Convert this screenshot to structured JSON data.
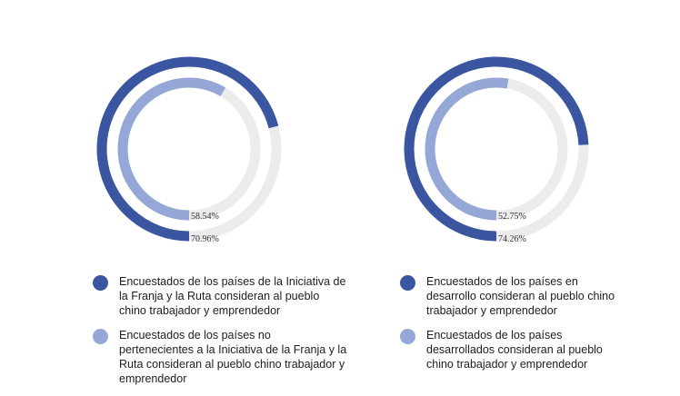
{
  "chart_data": [
    {
      "type": "radial-progress",
      "unit": "%",
      "max": 100,
      "series": [
        {
          "name": "Encuestados de los países de la Iniciativa de la Franja y la Ruta consideran al pueblo chino trabajador y emprendedor",
          "value": 70.96,
          "label": "70.96%",
          "color": "#3a56a0"
        },
        {
          "name": "Encuestados de los países no pertenecientes a la Iniciativa de la Franja y la Ruta consideran al pueblo chino trabajador y emprendedor",
          "value": 58.54,
          "label": "58.54%",
          "color": "#95a7d6"
        }
      ]
    },
    {
      "type": "radial-progress",
      "unit": "%",
      "max": 100,
      "series": [
        {
          "name": "Encuestados de los países en desarrollo consideran al pueblo chino trabajador y emprendedor",
          "value": 74.26,
          "label": "74.26%",
          "color": "#3a56a0"
        },
        {
          "name": "Encuestados de los países desarrollados consideran al pueblo chino trabajador y emprendedor",
          "value": 52.75,
          "label": "52.75%",
          "color": "#95a7d6"
        }
      ]
    }
  ],
  "colors": {
    "track": "#ececec",
    "outer": "#3a56a0",
    "inner": "#95a7d6"
  }
}
